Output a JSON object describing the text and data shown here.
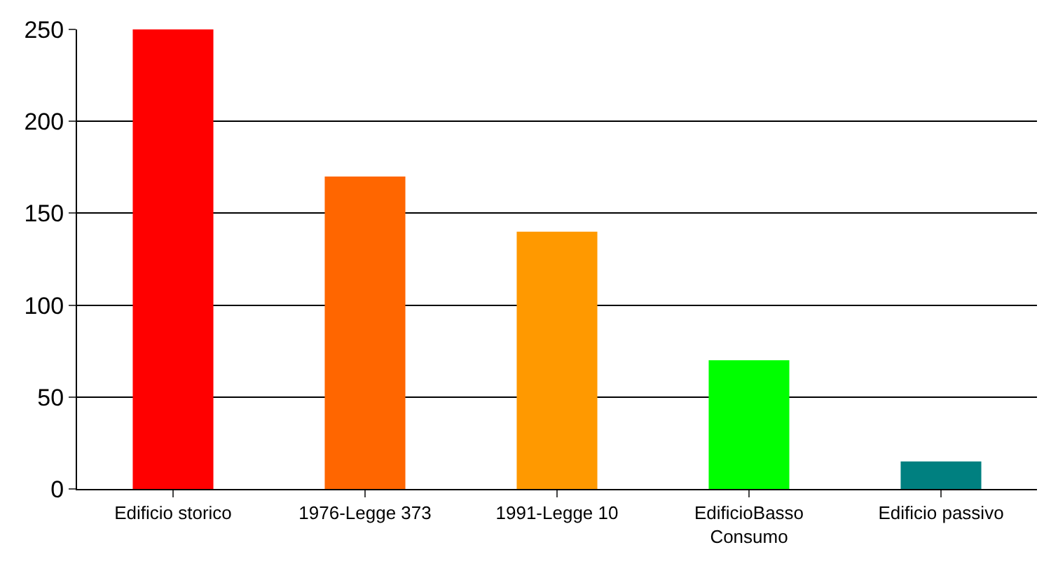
{
  "chart_data": {
    "type": "bar",
    "categories": [
      "Edificio storico",
      "1976-Legge 373",
      "1991-Legge 10",
      "EdificioBasso\nConsumo",
      "Edificio passivo"
    ],
    "values": [
      250,
      170,
      140,
      70,
      15
    ],
    "colors": [
      "#ff0000",
      "#ff6600",
      "#ff9900",
      "#00ff00",
      "#008080"
    ],
    "ylim": [
      0,
      250
    ],
    "yticks": [
      0,
      50,
      100,
      150,
      200,
      250
    ],
    "grid": "y"
  }
}
